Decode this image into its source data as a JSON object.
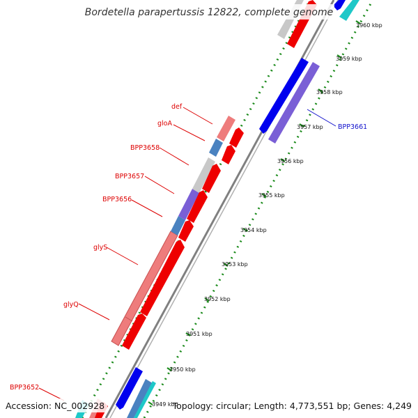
{
  "title": "Bordetella parapertussis 12822, complete genome",
  "footer": {
    "accession": "Accession: NC_002928",
    "summary": "Topology: circular; Length: 4,773,551 bp; Genes: 4,249"
  },
  "scale_labels": [
    "3949 kbp",
    "3950 kbp",
    "3951 kbp",
    "3952 kbp",
    "3953 kbp",
    "3954 kbp",
    "3955 kbp",
    "3956 kbp",
    "3957 kbp",
    "3958 kbp",
    "3959 kbp",
    "3960 kbp"
  ],
  "gene_labels": {
    "def": "def",
    "gloA": "gloA",
    "BPP3658": "BPP3658",
    "BPP3657": "BPP3657",
    "BPP3656": "BPP3656",
    "glyS": "glyS",
    "glyQ": "glyQ",
    "BPP3652": "BPP3652",
    "BPP3661": "BPP3661"
  },
  "colors": {
    "forward_cds": "#ee0000",
    "reverse_cds": "#0000ee",
    "lavender": "#7a5fd6",
    "pink": "#ee7c7c",
    "steel": "#4a82c0",
    "gray": "#c8c8c8",
    "cyan": "#1ec8c8",
    "backbone": "#808080",
    "gc_dots": "#1a8a1a",
    "label_red": "#dd0000",
    "label_blue": "#1010cc"
  }
}
